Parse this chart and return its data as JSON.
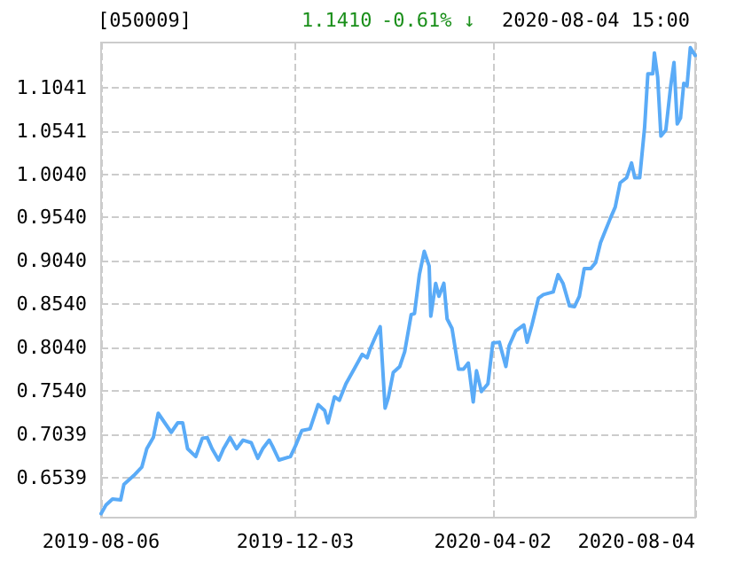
{
  "chart_data": {
    "type": "line",
    "title": "[050009]",
    "annotations": [
      "1.1410",
      "-0.61% ↓",
      "2020-08-04 15:00"
    ],
    "x": [
      "2019-08-06",
      "2019-08-09",
      "2019-08-13",
      "2019-08-18",
      "2019-08-20",
      "2019-08-26",
      "2019-08-31",
      "2019-09-03",
      "2019-09-07",
      "2019-09-10",
      "2019-09-14",
      "2019-09-18",
      "2019-09-22",
      "2019-09-25",
      "2019-09-28",
      "2019-10-03",
      "2019-10-07",
      "2019-10-10",
      "2019-10-13",
      "2019-10-17",
      "2019-10-20",
      "2019-10-24",
      "2019-10-28",
      "2019-11-01",
      "2019-11-06",
      "2019-11-10",
      "2019-11-13",
      "2019-11-17",
      "2019-11-19",
      "2019-11-23",
      "2019-11-30",
      "2019-12-03",
      "2019-12-07",
      "2019-12-12",
      "2019-12-17",
      "2019-12-21",
      "2019-12-23",
      "2019-12-27",
      "2019-12-30",
      "2020-01-03",
      "2020-01-08",
      "2020-01-13",
      "2020-01-16",
      "2020-01-18",
      "2020-01-21",
      "2020-01-24",
      "2020-01-27",
      "2020-01-29",
      "2020-02-01",
      "2020-02-05",
      "2020-02-08",
      "2020-02-12",
      "2020-02-14",
      "2020-02-17",
      "2020-02-20",
      "2020-02-23",
      "2020-02-24",
      "2020-02-27",
      "2020-02-29",
      "2020-03-03",
      "2020-03-05",
      "2020-03-08",
      "2020-03-12",
      "2020-03-15",
      "2020-03-18",
      "2020-03-21",
      "2020-03-23",
      "2020-03-26",
      "2020-03-30",
      "2020-04-02",
      "2020-04-06",
      "2020-04-10",
      "2020-04-12",
      "2020-04-16",
      "2020-04-21",
      "2020-04-23",
      "2020-04-26",
      "2020-04-30",
      "2020-05-03",
      "2020-05-09",
      "2020-05-12",
      "2020-05-15",
      "2020-05-19",
      "2020-05-22",
      "2020-05-25",
      "2020-05-28",
      "2020-06-01",
      "2020-06-04",
      "2020-06-07",
      "2020-06-10",
      "2020-06-13",
      "2020-06-16",
      "2020-06-19",
      "2020-06-23",
      "2020-06-26",
      "2020-06-28",
      "2020-07-01",
      "2020-07-04",
      "2020-07-06",
      "2020-07-09",
      "2020-07-10",
      "2020-07-12",
      "2020-07-14",
      "2020-07-17",
      "2020-07-20",
      "2020-07-22",
      "2020-07-24",
      "2020-07-26",
      "2020-07-28",
      "2020-07-30",
      "2020-08-01",
      "2020-08-04"
    ],
    "series": [
      {
        "color": "#5aabf7",
        "values": [
          0.612,
          0.622,
          0.629,
          0.628,
          0.646,
          0.656,
          0.666,
          0.687,
          0.7,
          0.728,
          0.717,
          0.706,
          0.717,
          0.717,
          0.687,
          0.678,
          0.699,
          0.7,
          0.687,
          0.674,
          0.687,
          0.7,
          0.687,
          0.697,
          0.694,
          0.676,
          0.687,
          0.697,
          0.69,
          0.674,
          0.678,
          0.69,
          0.708,
          0.71,
          0.738,
          0.731,
          0.717,
          0.747,
          0.743,
          0.762,
          0.779,
          0.796,
          0.792,
          0.803,
          0.816,
          0.828,
          0.734,
          0.746,
          0.775,
          0.782,
          0.799,
          0.842,
          0.843,
          0.888,
          0.915,
          0.898,
          0.84,
          0.878,
          0.863,
          0.878,
          0.837,
          0.826,
          0.779,
          0.779,
          0.786,
          0.741,
          0.777,
          0.753,
          0.762,
          0.809,
          0.81,
          0.782,
          0.806,
          0.823,
          0.83,
          0.81,
          0.83,
          0.861,
          0.865,
          0.868,
          0.888,
          0.878,
          0.852,
          0.851,
          0.863,
          0.895,
          0.895,
          0.902,
          0.925,
          0.939,
          0.953,
          0.966,
          0.994,
          1.0,
          1.017,
          1.0,
          1.0,
          1.058,
          1.12,
          1.12,
          1.144,
          1.116,
          1.048,
          1.055,
          1.106,
          1.133,
          1.062,
          1.069,
          1.109,
          1.106,
          1.15,
          1.141
        ]
      }
    ],
    "xlim": [
      "2019-08-06",
      "2020-08-04"
    ],
    "xticks": [
      "2019-08-06",
      "2019-12-03",
      "2020-04-02",
      "2020-08-04"
    ],
    "ylim": [
      0.6075,
      1.156
    ],
    "yticks": [
      0.6539,
      0.7039,
      {
        "value": 0.754,
        "label": "0.7540"
      },
      {
        "value": 0.804,
        "label": "0.8040"
      },
      {
        "value": 0.854,
        "label": "0.8540"
      },
      {
        "value": 0.904,
        "label": "0.9040"
      },
      {
        "value": 0.954,
        "label": "0.9540"
      },
      {
        "value": 1.004,
        "label": "1.0040"
      },
      1.0541,
      1.1041
    ],
    "grid": true,
    "marker": "none",
    "line_style": "solid"
  }
}
